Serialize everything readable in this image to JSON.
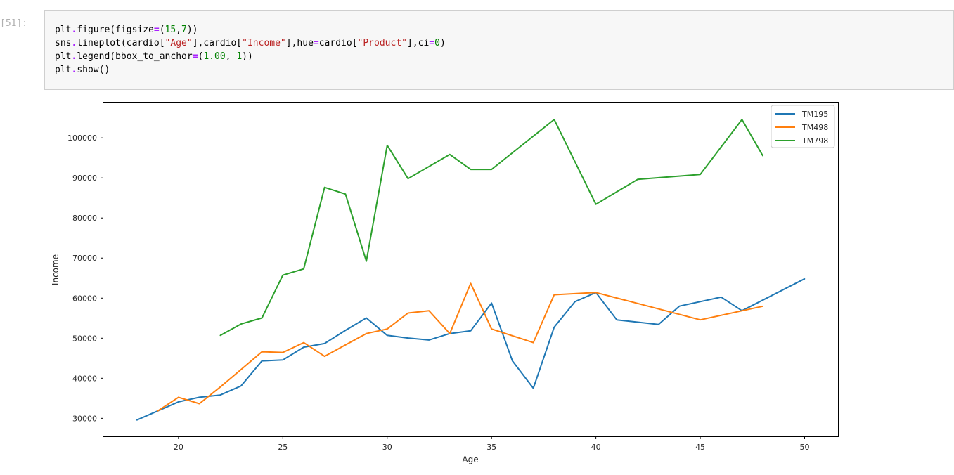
{
  "prompt": "[51]:",
  "code_lines": [
    [
      {
        "t": "plt"
      },
      {
        "t": ".",
        "c": "op"
      },
      {
        "t": "figure(figsize"
      },
      {
        "t": "=",
        "c": "op"
      },
      {
        "t": "("
      },
      {
        "t": "15",
        "c": "num"
      },
      {
        "t": ","
      },
      {
        "t": "7",
        "c": "num"
      },
      {
        "t": "))"
      }
    ],
    [
      {
        "t": "sns"
      },
      {
        "t": ".",
        "c": "op"
      },
      {
        "t": "lineplot(cardio["
      },
      {
        "t": "\"Age\"",
        "c": "str"
      },
      {
        "t": "],cardio["
      },
      {
        "t": "\"Income\"",
        "c": "str"
      },
      {
        "t": "],hue"
      },
      {
        "t": "=",
        "c": "op"
      },
      {
        "t": "cardio["
      },
      {
        "t": "\"Product\"",
        "c": "str"
      },
      {
        "t": "],ci"
      },
      {
        "t": "=",
        "c": "op"
      },
      {
        "t": "0",
        "c": "num"
      },
      {
        "t": ")"
      }
    ],
    [
      {
        "t": "plt"
      },
      {
        "t": ".",
        "c": "op"
      },
      {
        "t": "legend(bbox_to_anchor"
      },
      {
        "t": "=",
        "c": "op"
      },
      {
        "t": "("
      },
      {
        "t": "1.00",
        "c": "num"
      },
      {
        "t": ", "
      },
      {
        "t": "1",
        "c": "num"
      },
      {
        "t": "))"
      }
    ],
    [
      {
        "t": "plt"
      },
      {
        "t": ".",
        "c": "op"
      },
      {
        "t": "show()"
      }
    ]
  ],
  "chart_data": {
    "type": "line",
    "title": "",
    "xlabel": "Age",
    "ylabel": "Income",
    "xlim": [
      16.4,
      51.6
    ],
    "ylim": [
      25500,
      108800
    ],
    "xticks": [
      20,
      25,
      30,
      35,
      40,
      45,
      50
    ],
    "yticks": [
      30000,
      40000,
      50000,
      60000,
      70000,
      80000,
      90000,
      100000
    ],
    "legend_position": "top-right",
    "grid": false,
    "series": [
      {
        "name": "TM195",
        "color": "#1f77b4",
        "points": [
          [
            18,
            29562
          ],
          [
            19,
            31836
          ],
          [
            20,
            34110
          ],
          [
            21,
            35247
          ],
          [
            22,
            35815
          ],
          [
            23,
            38099
          ],
          [
            24,
            44343
          ],
          [
            25,
            44565
          ],
          [
            26,
            47754
          ],
          [
            27,
            48658
          ],
          [
            28,
            51960
          ],
          [
            29,
            55050
          ],
          [
            30,
            50708
          ],
          [
            31,
            50028
          ],
          [
            32,
            49540
          ],
          [
            33,
            51165
          ],
          [
            34,
            51847
          ],
          [
            35,
            58776
          ],
          [
            36,
            44343
          ],
          [
            37,
            37521
          ],
          [
            38,
            52750
          ],
          [
            39,
            59123
          ],
          [
            40,
            61398
          ],
          [
            41,
            54576
          ],
          [
            43,
            53439
          ],
          [
            44,
            58000
          ],
          [
            46,
            60262
          ],
          [
            47,
            56850
          ],
          [
            50,
            64809
          ]
        ]
      },
      {
        "name": "TM498",
        "color": "#ff7f0e",
        "points": [
          [
            19,
            31836
          ],
          [
            20,
            35247
          ],
          [
            21,
            33656
          ],
          [
            22,
            37803
          ],
          [
            23,
            42185
          ],
          [
            24,
            46617
          ],
          [
            25,
            46442
          ],
          [
            26,
            48891
          ],
          [
            27,
            45480
          ],
          [
            28,
            48324
          ],
          [
            29,
            51165
          ],
          [
            30,
            52302
          ],
          [
            31,
            56282
          ],
          [
            32,
            56850
          ],
          [
            33,
            51165
          ],
          [
            34,
            63670
          ],
          [
            35,
            52302
          ],
          [
            37,
            48891
          ],
          [
            38,
            60829
          ],
          [
            40,
            61398
          ],
          [
            45,
            54576
          ],
          [
            48,
            57987
          ]
        ]
      },
      {
        "name": "TM798",
        "color": "#2ca02c",
        "points": [
          [
            22,
            50682
          ],
          [
            23,
            53536
          ],
          [
            24,
            55058
          ],
          [
            25,
            65726
          ],
          [
            26,
            67294
          ],
          [
            27,
            87626
          ],
          [
            28,
            85964
          ],
          [
            29,
            69220
          ],
          [
            30,
            98130
          ],
          [
            31,
            89822
          ],
          [
            33,
            95850
          ],
          [
            34,
            92131
          ],
          [
            35,
            92131
          ],
          [
            38,
            104581
          ],
          [
            40,
            83416
          ],
          [
            42,
            89641
          ],
          [
            45,
            90886
          ],
          [
            47,
            104581
          ],
          [
            48,
            95508
          ]
        ]
      }
    ]
  }
}
